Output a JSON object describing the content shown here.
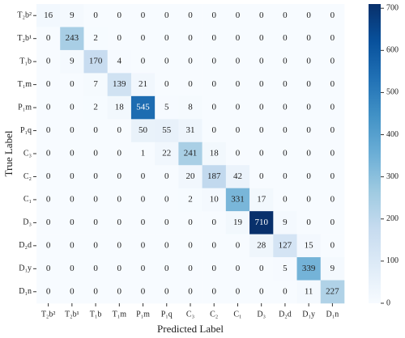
{
  "chart_data": {
    "type": "heatmap",
    "x_label": "Predicted Label",
    "y_label": "True Label",
    "x_categories": [
      "T₂b²",
      "T₂b¹",
      "T₁b",
      "T₁m",
      "P₁m",
      "P₁q",
      "C₃",
      "C₂",
      "C₁",
      "D₃",
      "D₂d",
      "D₁y",
      "D₁n"
    ],
    "y_categories": [
      "T₂b²",
      "T₂b¹",
      "T₁b",
      "T₁m",
      "P₁m",
      "P₁q",
      "C₃",
      "C₂",
      "C₁",
      "D₃",
      "D₂d",
      "D₁y",
      "D₁n"
    ],
    "values": [
      [
        16,
        9,
        0,
        0,
        0,
        0,
        0,
        0,
        0,
        0,
        0,
        0,
        0
      ],
      [
        0,
        243,
        2,
        0,
        0,
        0,
        0,
        0,
        0,
        0,
        0,
        0,
        0
      ],
      [
        0,
        9,
        170,
        4,
        0,
        0,
        0,
        0,
        0,
        0,
        0,
        0,
        0
      ],
      [
        0,
        0,
        7,
        139,
        21,
        0,
        0,
        0,
        0,
        0,
        0,
        0,
        0
      ],
      [
        0,
        0,
        2,
        18,
        545,
        5,
        8,
        0,
        0,
        0,
        0,
        0,
        0
      ],
      [
        0,
        0,
        0,
        0,
        50,
        55,
        31,
        0,
        0,
        0,
        0,
        0,
        0
      ],
      [
        0,
        0,
        0,
        0,
        1,
        22,
        241,
        18,
        0,
        0,
        0,
        0,
        0
      ],
      [
        0,
        0,
        0,
        0,
        0,
        0,
        20,
        187,
        42,
        0,
        0,
        0,
        0
      ],
      [
        0,
        0,
        0,
        0,
        0,
        0,
        2,
        10,
        331,
        17,
        0,
        0,
        0
      ],
      [
        0,
        0,
        0,
        0,
        0,
        0,
        0,
        0,
        19,
        710,
        9,
        0,
        0
      ],
      [
        0,
        0,
        0,
        0,
        0,
        0,
        0,
        0,
        0,
        28,
        127,
        15,
        0
      ],
      [
        0,
        0,
        0,
        0,
        0,
        0,
        0,
        0,
        0,
        0,
        5,
        339,
        9
      ],
      [
        0,
        0,
        0,
        0,
        0,
        0,
        0,
        0,
        0,
        0,
        0,
        11,
        227
      ]
    ],
    "colormap": [
      "#f7fbff",
      "#deebf7",
      "#c6dbef",
      "#9ecae1",
      "#6baed6",
      "#4292c6",
      "#2171b5",
      "#08519c",
      "#08306b"
    ],
    "clim": [
      0,
      710
    ],
    "cticks": [
      0,
      100,
      200,
      300,
      400,
      500,
      600,
      700
    ]
  }
}
